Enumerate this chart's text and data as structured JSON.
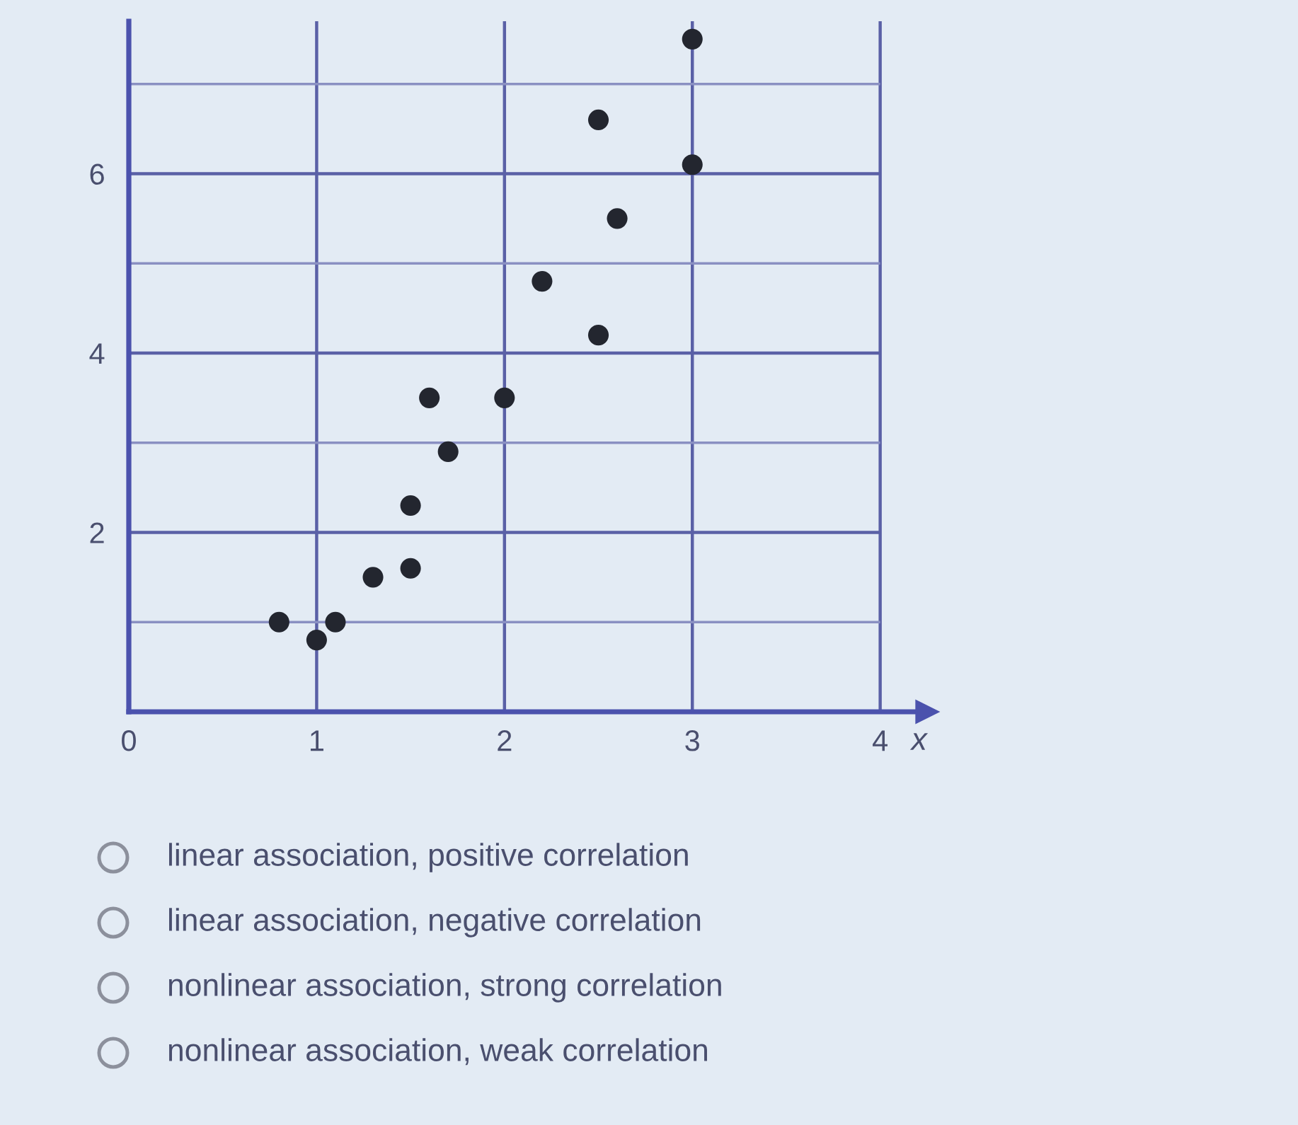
{
  "chart_data": {
    "type": "scatter",
    "x": [
      0.8,
      1.0,
      1.1,
      1.3,
      1.5,
      1.5,
      1.6,
      1.7,
      2.0,
      2.2,
      2.5,
      2.5,
      2.6,
      3.0,
      3.0
    ],
    "values": [
      1.0,
      0.8,
      1.0,
      1.5,
      1.6,
      2.3,
      3.5,
      2.9,
      3.5,
      4.8,
      4.2,
      6.6,
      5.5,
      6.1,
      7.5
    ],
    "color": "#23262f",
    "marker": "circle",
    "xlabel": "x",
    "xlim": [
      0,
      4.25
    ],
    "ylim": [
      0,
      7.7
    ],
    "xticks": [
      0,
      1,
      2,
      3,
      4
    ],
    "yticks": [
      {
        "value": 0,
        "label": null
      },
      {
        "value": 1,
        "label": null
      },
      2,
      {
        "value": 3,
        "label": null
      },
      4,
      {
        "value": 5,
        "label": null
      },
      6,
      {
        "value": 7,
        "label": null
      }
    ],
    "grid": true,
    "annotations": [
      "linear association, positive correlation",
      "linear association, negative correlation",
      "nonlinear association, strong correlation",
      "nonlinear association, weak correlation"
    ]
  }
}
